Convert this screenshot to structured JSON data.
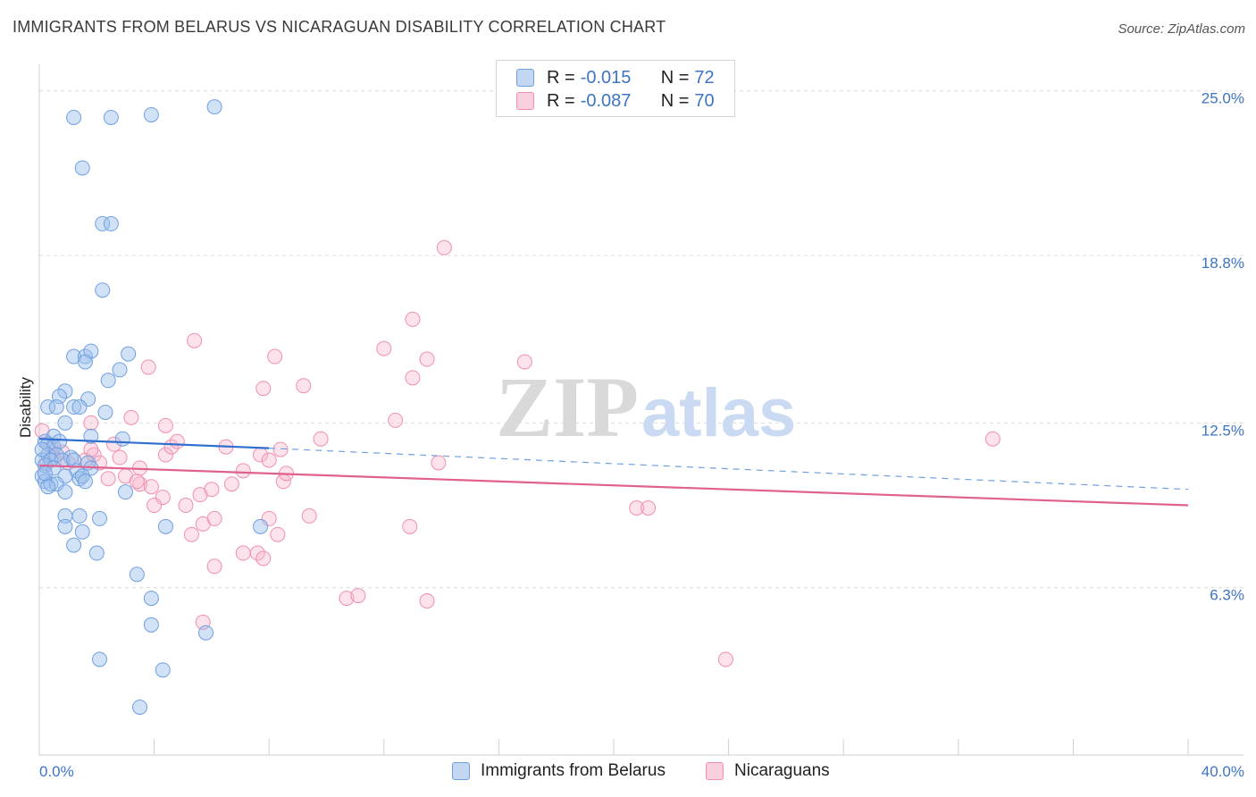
{
  "title": "IMMIGRANTS FROM BELARUS VS NICARAGUAN DISABILITY CORRELATION CHART",
  "source": "Source: ZipAtlas.com",
  "watermark": {
    "zip": "ZIP",
    "atlas": "atlas"
  },
  "legend_top": [
    {
      "r_label": "R =",
      "r_value": "-0.015",
      "n_label": "N =",
      "n_value": "72",
      "color": "#6f9fe0"
    },
    {
      "r_label": "R =",
      "r_value": "-0.087",
      "n_label": "N =",
      "n_value": "70",
      "color": "#f08fae"
    }
  ],
  "legend_bottom": [
    {
      "label": "Immigrants from Belarus",
      "color": "#6f9fe0"
    },
    {
      "label": "Nicaraguans",
      "color": "#f08fae"
    }
  ],
  "chart_data": {
    "type": "scatter",
    "title": "IMMIGRANTS FROM BELARUS VS NICARAGUAN DISABILITY CORRELATION CHART",
    "xlabel": "",
    "ylabel": "Disability",
    "xlim": [
      0,
      40
    ],
    "ylim": [
      0,
      26
    ],
    "x_tick_labels": [
      "0.0%",
      "40.0%"
    ],
    "y_ticks": [
      6.3,
      12.5,
      18.8,
      25.0
    ],
    "y_tick_labels": [
      "6.3%",
      "12.5%",
      "18.8%",
      "25.0%"
    ],
    "grid": true,
    "series": [
      {
        "name": "Immigrants from Belarus",
        "color": "#6f9fe0",
        "trend": {
          "x0": 0,
          "y0": 11.9,
          "x1": 8,
          "y1": 11.55,
          "dashed_to_x": 40,
          "dashed_to_y": 10.0
        },
        "points": [
          [
            1.2,
            24.0
          ],
          [
            2.5,
            24.0
          ],
          [
            3.9,
            24.1
          ],
          [
            6.1,
            24.4
          ],
          [
            1.5,
            22.1
          ],
          [
            2.2,
            20.0
          ],
          [
            2.5,
            20.0
          ],
          [
            2.2,
            17.5
          ],
          [
            1.2,
            15.0
          ],
          [
            1.6,
            15.0
          ],
          [
            1.8,
            15.2
          ],
          [
            3.1,
            15.1
          ],
          [
            1.6,
            14.8
          ],
          [
            2.8,
            14.5
          ],
          [
            2.4,
            14.1
          ],
          [
            0.9,
            13.7
          ],
          [
            0.7,
            13.5
          ],
          [
            1.7,
            13.4
          ],
          [
            0.3,
            13.1
          ],
          [
            0.6,
            13.1
          ],
          [
            1.2,
            13.1
          ],
          [
            1.4,
            13.1
          ],
          [
            2.3,
            12.9
          ],
          [
            0.9,
            12.5
          ],
          [
            0.5,
            12.0
          ],
          [
            1.8,
            12.0
          ],
          [
            2.9,
            11.9
          ],
          [
            0.2,
            11.8
          ],
          [
            0.3,
            11.7
          ],
          [
            0.5,
            11.6
          ],
          [
            0.7,
            11.8
          ],
          [
            0.3,
            11.3
          ],
          [
            0.6,
            11.3
          ],
          [
            1.1,
            11.2
          ],
          [
            0.1,
            11.1
          ],
          [
            0.4,
            11.1
          ],
          [
            0.8,
            11.1
          ],
          [
            1.2,
            11.1
          ],
          [
            1.7,
            11.0
          ],
          [
            0.2,
            10.9
          ],
          [
            0.5,
            10.8
          ],
          [
            1.3,
            10.7
          ],
          [
            1.8,
            10.8
          ],
          [
            0.1,
            10.5
          ],
          [
            0.9,
            10.5
          ],
          [
            1.4,
            10.4
          ],
          [
            1.5,
            10.5
          ],
          [
            0.2,
            10.3
          ],
          [
            0.4,
            10.2
          ],
          [
            0.6,
            10.2
          ],
          [
            1.6,
            10.3
          ],
          [
            0.3,
            10.1
          ],
          [
            0.9,
            9.9
          ],
          [
            3.0,
            9.9
          ],
          [
            0.9,
            9.0
          ],
          [
            1.4,
            9.0
          ],
          [
            2.1,
            8.9
          ],
          [
            0.9,
            8.6
          ],
          [
            1.5,
            8.4
          ],
          [
            4.4,
            8.6
          ],
          [
            7.7,
            8.6
          ],
          [
            1.2,
            7.9
          ],
          [
            2.0,
            7.6
          ],
          [
            3.4,
            6.8
          ],
          [
            3.9,
            5.9
          ],
          [
            3.9,
            4.9
          ],
          [
            5.8,
            4.6
          ],
          [
            2.1,
            3.6
          ],
          [
            4.3,
            3.2
          ],
          [
            3.5,
            1.8
          ],
          [
            0.1,
            11.5
          ],
          [
            0.2,
            10.6
          ]
        ]
      },
      {
        "name": "Nicaraguans",
        "color": "#f08fae",
        "trend": {
          "x0": 0,
          "y0": 10.9,
          "x1": 40,
          "y1": 9.4
        },
        "points": [
          [
            0.1,
            12.2
          ],
          [
            0.4,
            11.6
          ],
          [
            0.8,
            11.4
          ],
          [
            0.5,
            11.2
          ],
          [
            0.2,
            10.9
          ],
          [
            1.0,
            11.0
          ],
          [
            1.6,
            11.1
          ],
          [
            1.9,
            11.3
          ],
          [
            1.8,
            11.5
          ],
          [
            2.1,
            11.0
          ],
          [
            2.4,
            10.4
          ],
          [
            2.6,
            11.7
          ],
          [
            2.8,
            11.2
          ],
          [
            3.0,
            10.5
          ],
          [
            3.2,
            12.7
          ],
          [
            1.8,
            12.5
          ],
          [
            3.8,
            14.6
          ],
          [
            4.4,
            11.3
          ],
          [
            4.4,
            12.4
          ],
          [
            4.6,
            11.6
          ],
          [
            4.8,
            11.8
          ],
          [
            3.5,
            10.2
          ],
          [
            3.4,
            10.3
          ],
          [
            3.9,
            10.1
          ],
          [
            3.5,
            10.8
          ],
          [
            4.3,
            9.7
          ],
          [
            4.0,
            9.4
          ],
          [
            5.1,
            9.4
          ],
          [
            5.6,
            9.8
          ],
          [
            5.3,
            8.3
          ],
          [
            5.7,
            8.7
          ],
          [
            6.1,
            8.9
          ],
          [
            6.0,
            10.0
          ],
          [
            5.4,
            15.6
          ],
          [
            6.5,
            11.6
          ],
          [
            6.7,
            10.2
          ],
          [
            7.1,
            10.7
          ],
          [
            7.7,
            11.3
          ],
          [
            8.0,
            11.1
          ],
          [
            7.8,
            13.8
          ],
          [
            8.2,
            15.0
          ],
          [
            8.4,
            11.5
          ],
          [
            8.5,
            10.3
          ],
          [
            8.6,
            10.6
          ],
          [
            9.2,
            13.9
          ],
          [
            9.4,
            9.0
          ],
          [
            8.0,
            8.9
          ],
          [
            8.3,
            8.3
          ],
          [
            7.1,
            7.6
          ],
          [
            7.6,
            7.6
          ],
          [
            7.8,
            7.4
          ],
          [
            6.1,
            7.1
          ],
          [
            5.7,
            5.0
          ],
          [
            10.7,
            5.9
          ],
          [
            11.1,
            6.0
          ],
          [
            12.0,
            15.3
          ],
          [
            12.4,
            12.6
          ],
          [
            12.9,
            8.6
          ],
          [
            13.0,
            16.4
          ],
          [
            13.5,
            14.9
          ],
          [
            13.9,
            11.0
          ],
          [
            13.0,
            14.2
          ],
          [
            14.1,
            19.1
          ],
          [
            13.5,
            5.8
          ],
          [
            16.9,
            14.8
          ],
          [
            20.8,
            9.3
          ],
          [
            21.2,
            9.3
          ],
          [
            23.9,
            3.6
          ],
          [
            33.2,
            11.9
          ],
          [
            9.8,
            11.9
          ]
        ]
      }
    ]
  }
}
